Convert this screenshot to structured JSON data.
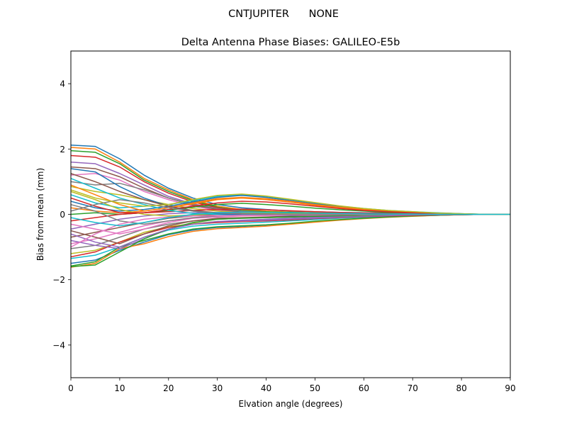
{
  "suptitle": "CNTJUPITER      NONE",
  "chart_data": {
    "type": "line",
    "title": "Delta Antenna Phase Biases: GALILEO-E5b",
    "xlabel": "Elvation angle (degrees)",
    "ylabel": "Bias from mean (mm)",
    "xlim": [
      0,
      90
    ],
    "ylim": [
      -5,
      5
    ],
    "xticks": [
      0,
      10,
      20,
      30,
      40,
      50,
      60,
      70,
      80,
      90
    ],
    "yticks": [
      -4,
      -2,
      0,
      2,
      4
    ],
    "ytick_labels": [
      "−4",
      "−2",
      "0",
      "2",
      "4"
    ],
    "grid": false,
    "legend": "none",
    "x": [
      0,
      5,
      10,
      15,
      20,
      25,
      30,
      35,
      40,
      45,
      50,
      55,
      60,
      65,
      70,
      75,
      80,
      85,
      90
    ],
    "colors": [
      "#1f77b4",
      "#ff7f0e",
      "#2ca02c",
      "#d62728",
      "#9467bd",
      "#8c564b",
      "#e377c2",
      "#7f7f7f",
      "#bcbd22",
      "#17becf"
    ],
    "series": [
      {
        "values": [
          2.12,
          2.08,
          1.7,
          1.2,
          0.8,
          0.5,
          0.3,
          0.2,
          0.15,
          0.1,
          0.08,
          0.06,
          0.05,
          0.04,
          0.03,
          0.02,
          0.01,
          0.0,
          0.0
        ]
      },
      {
        "values": [
          2.05,
          2.0,
          1.6,
          1.1,
          0.75,
          0.45,
          0.25,
          0.15,
          0.1,
          0.07,
          0.05,
          0.04,
          0.03,
          0.02,
          0.02,
          0.01,
          0.0,
          0.0,
          0.0
        ]
      },
      {
        "values": [
          1.95,
          1.9,
          1.55,
          1.05,
          0.7,
          0.42,
          0.22,
          0.12,
          0.08,
          0.06,
          0.04,
          0.03,
          0.02,
          0.02,
          0.01,
          0.01,
          0.0,
          0.0,
          0.0
        ]
      },
      {
        "values": [
          1.8,
          1.75,
          1.45,
          1.0,
          0.65,
          0.38,
          0.2,
          0.1,
          0.06,
          0.04,
          0.03,
          0.02,
          0.02,
          0.01,
          0.01,
          0.0,
          0.0,
          0.0,
          0.0
        ]
      },
      {
        "values": [
          1.6,
          1.55,
          1.25,
          0.9,
          0.55,
          0.32,
          0.18,
          0.08,
          0.05,
          0.03,
          0.02,
          0.02,
          0.01,
          0.01,
          0.0,
          0.0,
          0.0,
          0.0,
          0.0
        ]
      },
      {
        "values": [
          1.45,
          1.4,
          1.15,
          0.8,
          0.5,
          0.28,
          0.15,
          0.07,
          0.04,
          0.02,
          0.02,
          0.01,
          0.01,
          0.0,
          0.0,
          0.0,
          0.0,
          0.0,
          0.0
        ]
      },
      {
        "values": [
          1.2,
          1.25,
          1.05,
          0.7,
          0.45,
          0.25,
          0.12,
          0.05,
          0.03,
          0.02,
          0.01,
          0.01,
          0.0,
          0.0,
          0.0,
          0.0,
          0.0,
          0.0,
          0.0
        ]
      },
      {
        "values": [
          1.0,
          0.9,
          0.95,
          0.75,
          0.5,
          0.3,
          0.18,
          0.1,
          0.06,
          0.04,
          0.03,
          0.02,
          0.01,
          0.01,
          0.0,
          0.0,
          0.0,
          0.0,
          0.0
        ]
      },
      {
        "values": [
          0.85,
          0.7,
          0.6,
          0.45,
          0.3,
          0.18,
          0.1,
          0.05,
          0.03,
          0.02,
          0.01,
          0.01,
          0.0,
          0.0,
          0.0,
          0.0,
          0.0,
          0.0,
          0.0
        ]
      },
      {
        "values": [
          0.6,
          0.35,
          0.2,
          0.25,
          0.3,
          0.42,
          0.55,
          0.6,
          0.55,
          0.45,
          0.35,
          0.25,
          0.18,
          0.12,
          0.08,
          0.05,
          0.02,
          0.0,
          0.0
        ]
      },
      {
        "values": [
          0.4,
          0.2,
          0.1,
          0.15,
          0.25,
          0.38,
          0.52,
          0.58,
          0.52,
          0.42,
          0.32,
          0.23,
          0.16,
          0.11,
          0.07,
          0.04,
          0.02,
          0.0,
          0.0
        ]
      },
      {
        "values": [
          0.2,
          0.1,
          0.05,
          0.1,
          0.2,
          0.32,
          0.45,
          0.5,
          0.45,
          0.37,
          0.28,
          0.2,
          0.14,
          0.09,
          0.06,
          0.03,
          0.01,
          0.0,
          0.0
        ]
      },
      {
        "values": [
          0.0,
          0.05,
          0.0,
          0.05,
          0.12,
          0.22,
          0.3,
          0.34,
          0.3,
          0.25,
          0.19,
          0.14,
          0.1,
          0.06,
          0.04,
          0.02,
          0.01,
          0.0,
          0.0
        ]
      },
      {
        "values": [
          -0.2,
          -0.1,
          0.0,
          0.05,
          0.08,
          0.12,
          0.15,
          0.16,
          0.14,
          0.11,
          0.08,
          0.06,
          0.04,
          0.03,
          0.02,
          0.01,
          0.0,
          0.0,
          0.0
        ]
      },
      {
        "values": [
          -0.45,
          -0.3,
          -0.15,
          -0.05,
          0.02,
          0.05,
          0.06,
          0.06,
          0.05,
          0.04,
          0.03,
          0.02,
          0.02,
          0.01,
          0.01,
          0.0,
          0.0,
          0.0,
          0.0
        ]
      },
      {
        "values": [
          -0.7,
          -0.55,
          -0.4,
          -0.25,
          -0.12,
          -0.05,
          0.0,
          0.02,
          0.02,
          0.02,
          0.01,
          0.01,
          0.01,
          0.0,
          0.0,
          0.0,
          0.0,
          0.0,
          0.0
        ]
      },
      {
        "values": [
          -0.9,
          -0.75,
          -0.55,
          -0.35,
          -0.2,
          -0.12,
          -0.08,
          -0.05,
          -0.04,
          -0.03,
          -0.02,
          -0.02,
          -0.01,
          -0.01,
          0.0,
          0.0,
          0.0,
          0.0,
          0.0
        ]
      },
      {
        "values": [
          -1.05,
          -0.95,
          -0.7,
          -0.45,
          -0.3,
          -0.2,
          -0.15,
          -0.12,
          -0.1,
          -0.08,
          -0.06,
          -0.05,
          -0.03,
          -0.02,
          -0.01,
          0.0,
          0.0,
          0.0,
          0.0
        ]
      },
      {
        "values": [
          -1.2,
          -1.1,
          -0.85,
          -0.55,
          -0.38,
          -0.28,
          -0.22,
          -0.2,
          -0.17,
          -0.14,
          -0.1,
          -0.08,
          -0.06,
          -0.04,
          -0.02,
          -0.01,
          0.0,
          0.0,
          0.0
        ]
      },
      {
        "values": [
          -1.35,
          -1.25,
          -1.0,
          -0.7,
          -0.48,
          -0.36,
          -0.3,
          -0.27,
          -0.24,
          -0.2,
          -0.16,
          -0.12,
          -0.09,
          -0.06,
          -0.04,
          -0.02,
          -0.01,
          0.0,
          0.0
        ]
      },
      {
        "values": [
          -1.5,
          -1.4,
          -1.1,
          -0.85,
          -0.62,
          -0.48,
          -0.4,
          -0.37,
          -0.33,
          -0.28,
          -0.22,
          -0.17,
          -0.12,
          -0.08,
          -0.05,
          -0.03,
          -0.01,
          0.0,
          0.0
        ]
      },
      {
        "values": [
          -1.62,
          -1.5,
          -1.05,
          -0.9,
          -0.68,
          -0.52,
          -0.44,
          -0.4,
          -0.36,
          -0.3,
          -0.24,
          -0.18,
          -0.13,
          -0.09,
          -0.06,
          -0.03,
          -0.01,
          0.0,
          0.0
        ]
      },
      {
        "values": [
          -1.58,
          -1.45,
          -1.0,
          -0.8,
          -0.6,
          -0.45,
          -0.38,
          -0.35,
          -0.32,
          -0.27,
          -0.21,
          -0.16,
          -0.12,
          -0.08,
          -0.05,
          -0.03,
          -0.01,
          0.0,
          0.0
        ]
      },
      {
        "values": [
          -1.3,
          -1.15,
          -0.85,
          -0.6,
          -0.4,
          -0.3,
          -0.25,
          -0.22,
          -0.2,
          -0.17,
          -0.13,
          -0.1,
          -0.07,
          -0.05,
          -0.03,
          -0.02,
          -0.01,
          0.0,
          0.0
        ]
      },
      {
        "values": [
          -0.8,
          -0.95,
          -1.05,
          -0.75,
          -0.45,
          -0.3,
          -0.22,
          -0.18,
          -0.15,
          -0.12,
          -0.09,
          -0.07,
          -0.05,
          -0.03,
          -0.02,
          -0.01,
          0.0,
          0.0,
          0.0
        ]
      },
      {
        "values": [
          -0.5,
          -0.7,
          -0.9,
          -0.6,
          -0.35,
          -0.2,
          -0.12,
          -0.1,
          -0.08,
          -0.06,
          -0.05,
          -0.04,
          -0.03,
          -0.02,
          -0.01,
          0.0,
          0.0,
          0.0,
          0.0
        ]
      },
      {
        "values": [
          -0.3,
          -0.45,
          -0.6,
          -0.45,
          -0.25,
          -0.12,
          -0.06,
          -0.04,
          -0.03,
          -0.02,
          -0.02,
          -0.01,
          -0.01,
          0.0,
          0.0,
          0.0,
          0.0,
          0.0,
          0.0
        ]
      },
      {
        "values": [
          0.3,
          0.1,
          -0.2,
          -0.3,
          -0.2,
          -0.1,
          -0.05,
          -0.02,
          -0.01,
          -0.01,
          0.0,
          0.0,
          0.0,
          0.0,
          0.0,
          0.0,
          0.0,
          0.0,
          0.0
        ]
      },
      {
        "values": [
          0.7,
          0.45,
          0.15,
          0.0,
          -0.05,
          -0.02,
          0.02,
          0.03,
          0.03,
          0.02,
          0.02,
          0.01,
          0.01,
          0.0,
          0.0,
          0.0,
          0.0,
          0.0,
          0.0
        ]
      },
      {
        "values": [
          1.1,
          0.8,
          0.5,
          0.3,
          0.12,
          0.03,
          0.0,
          -0.02,
          -0.02,
          -0.02,
          -0.01,
          -0.01,
          0.0,
          0.0,
          0.0,
          0.0,
          0.0,
          0.0,
          0.0
        ]
      },
      {
        "values": [
          1.4,
          1.3,
          0.85,
          0.5,
          0.25,
          0.1,
          0.02,
          -0.02,
          -0.03,
          -0.03,
          -0.02,
          -0.02,
          -0.01,
          -0.01,
          0.0,
          0.0,
          0.0,
          0.0,
          0.0
        ]
      },
      {
        "values": [
          0.9,
          0.6,
          0.3,
          0.1,
          0.2,
          0.35,
          0.48,
          0.52,
          0.48,
          0.4,
          0.3,
          0.22,
          0.15,
          0.1,
          0.06,
          0.03,
          0.01,
          0.0,
          0.0
        ]
      },
      {
        "values": [
          -1.6,
          -1.55,
          -1.15,
          -0.75,
          -0.45,
          -0.25,
          -0.15,
          -0.12,
          -0.1,
          -0.08,
          -0.06,
          -0.04,
          -0.03,
          -0.02,
          -0.01,
          0.0,
          0.0,
          0.0,
          0.0
        ]
      },
      {
        "values": [
          0.5,
          0.25,
          0.05,
          0.05,
          0.15,
          0.25,
          0.35,
          0.4,
          0.38,
          0.32,
          0.25,
          0.18,
          0.12,
          0.08,
          0.05,
          0.03,
          0.01,
          0.0,
          0.0
        ]
      },
      {
        "values": [
          -0.6,
          -0.85,
          -1.0,
          -0.7,
          -0.45,
          -0.3,
          -0.22,
          -0.2,
          -0.18,
          -0.15,
          -0.12,
          -0.09,
          -0.06,
          -0.04,
          -0.02,
          -0.01,
          0.0,
          0.0,
          0.0
        ]
      },
      {
        "values": [
          1.25,
          1.0,
          0.7,
          0.45,
          0.25,
          0.12,
          0.05,
          0.02,
          0.01,
          0.0,
          0.0,
          0.0,
          0.0,
          0.0,
          0.0,
          0.0,
          0.0,
          0.0,
          0.0
        ]
      },
      {
        "values": [
          -1.0,
          -0.6,
          -0.3,
          -0.15,
          -0.08,
          -0.05,
          -0.04,
          -0.03,
          -0.03,
          -0.02,
          -0.02,
          -0.01,
          -0.01,
          0.0,
          0.0,
          0.0,
          0.0,
          0.0,
          0.0
        ]
      },
      {
        "values": [
          0.1,
          0.3,
          0.45,
          0.35,
          0.2,
          0.1,
          0.04,
          0.02,
          0.01,
          0.0,
          0.0,
          0.0,
          0.0,
          0.0,
          0.0,
          0.0,
          0.0,
          0.0,
          0.0
        ]
      },
      {
        "values": [
          0.75,
          0.5,
          0.35,
          0.25,
          0.3,
          0.45,
          0.58,
          0.62,
          0.56,
          0.46,
          0.36,
          0.26,
          0.18,
          0.12,
          0.08,
          0.04,
          0.02,
          0.0,
          0.0
        ]
      },
      {
        "values": [
          -0.1,
          -0.25,
          -0.35,
          -0.25,
          -0.1,
          0.0,
          0.05,
          0.07,
          0.06,
          0.05,
          0.04,
          0.03,
          0.02,
          0.01,
          0.01,
          0.0,
          0.0,
          0.0,
          0.0
        ]
      }
    ]
  }
}
